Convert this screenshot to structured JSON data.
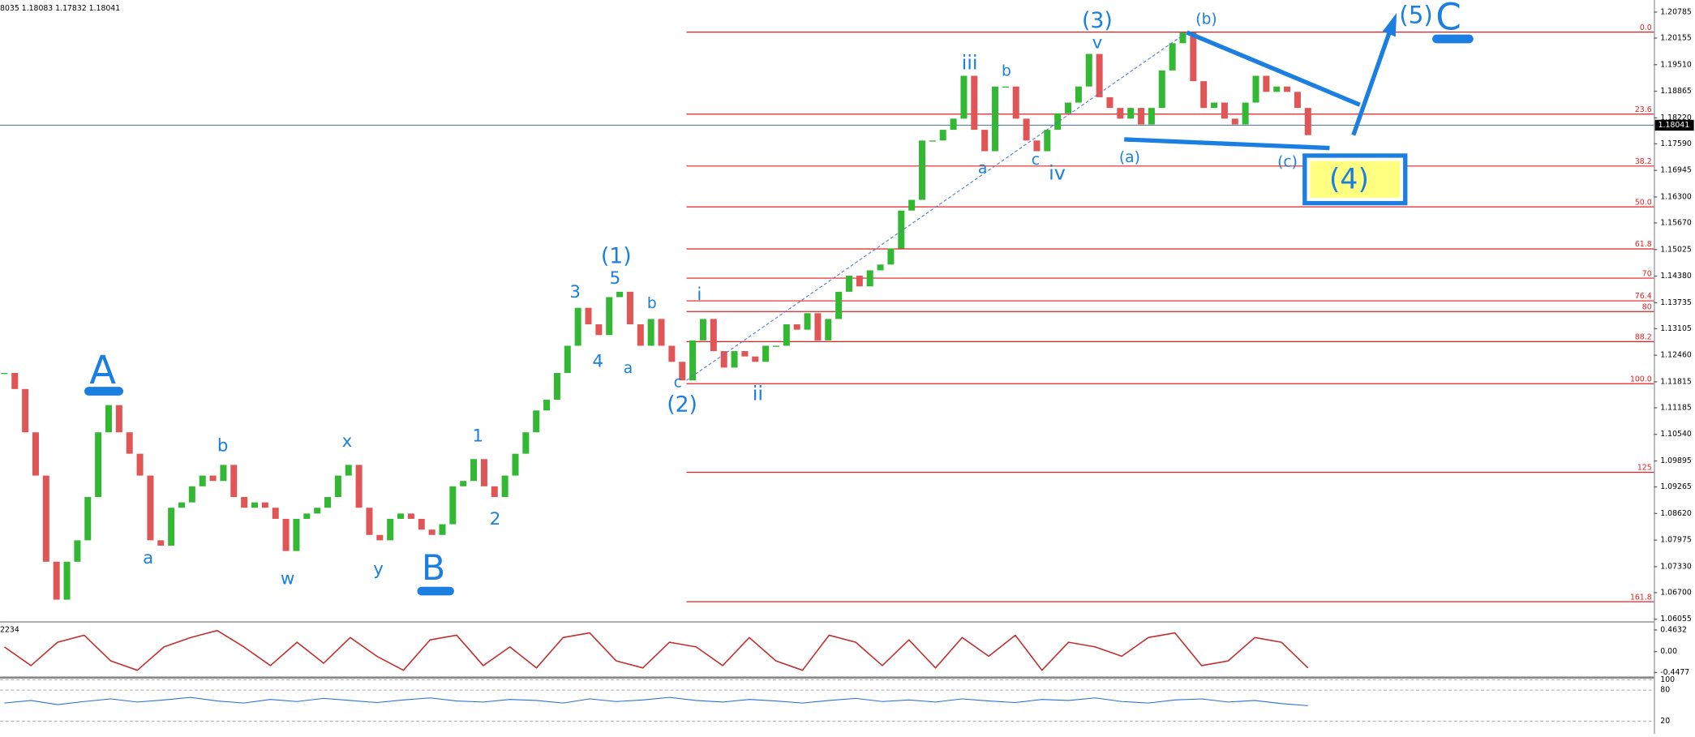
{
  "chart_data": {
    "type": "candlestick",
    "header": "8035 1.18083 1.17832 1.18041",
    "ylim": [
      1.06003,
      1.21079
    ],
    "yticks": [
      {
        "value": 1.20785,
        "label": "1.20785"
      },
      {
        "value": 1.20155,
        "label": "1.20155"
      },
      {
        "value": 1.1951,
        "label": "1.19510"
      },
      {
        "value": 1.18865,
        "label": "1.18865"
      },
      {
        "value": 1.1822,
        "label": "1.18220"
      },
      {
        "value": 1.1759,
        "label": "1.17590"
      },
      {
        "value": 1.16945,
        "label": "1.16945"
      },
      {
        "value": 1.163,
        "label": "1.16300"
      },
      {
        "value": 1.1567,
        "label": "1.15670"
      },
      {
        "value": 1.15025,
        "label": "1.15025"
      },
      {
        "value": 1.1438,
        "label": "1.14380"
      },
      {
        "value": 1.13735,
        "label": "1.13735"
      },
      {
        "value": 1.13105,
        "label": "1.13105"
      },
      {
        "value": 1.1246,
        "label": "1.12460"
      },
      {
        "value": 1.11815,
        "label": "1.11815"
      },
      {
        "value": 1.11185,
        "label": "1.11185"
      },
      {
        "value": 1.1054,
        "label": "1.10540"
      },
      {
        "value": 1.09895,
        "label": "1.09895"
      },
      {
        "value": 1.09265,
        "label": "1.09265"
      },
      {
        "value": 1.0862,
        "label": "1.08620"
      },
      {
        "value": 1.07975,
        "label": "1.07975"
      },
      {
        "value": 1.0733,
        "label": "1.07330"
      },
      {
        "value": 1.067,
        "label": "1.06700"
      },
      {
        "value": 1.06055,
        "label": "1.06055"
      }
    ],
    "current_price": {
      "value": 1.18041,
      "label": "1.18041"
    },
    "up_color": "#33b833",
    "down_color": "#e05555",
    "values": [
      1.1203,
      1.1164,
      1.1059,
      1.0954,
      1.0745,
      1.0653,
      1.0745,
      1.0797,
      1.0902,
      1.1059,
      1.1125,
      1.1059,
      1.1007,
      1.0954,
      1.0797,
      1.0784,
      1.0876,
      1.0889,
      1.0928,
      1.0954,
      1.0941,
      1.098,
      1.0902,
      1.0876,
      1.0889,
      1.0876,
      1.0849,
      1.0771,
      1.0849,
      1.0862,
      1.0876,
      1.0902,
      1.0954,
      1.098,
      1.0876,
      1.081,
      1.0797,
      1.0849,
      1.0862,
      1.0849,
      1.0823,
      1.081,
      1.0836,
      1.0928,
      1.0941,
      1.0994,
      1.0928,
      1.0902,
      1.0954,
      1.1007,
      1.1059,
      1.1112,
      1.1138,
      1.1203,
      1.1269,
      1.1361,
      1.1321,
      1.1295,
      1.1387,
      1.14,
      1.1321,
      1.1269,
      1.1334,
      1.1269,
      1.123,
      1.1185,
      1.1282,
      1.1334,
      1.1256,
      1.1216,
      1.1256,
      1.1243,
      1.123,
      1.1269,
      1.1269,
      1.1321,
      1.1308,
      1.1348,
      1.1282,
      1.1334,
      1.14,
      1.1439,
      1.1413,
      1.1452,
      1.1466,
      1.1505,
      1.1597,
      1.1623,
      1.1767,
      1.1767,
      1.1793,
      1.182,
      1.1924,
      1.1793,
      1.1741,
      1.1898,
      1.1898,
      1.182,
      1.1767,
      1.1741,
      1.1793,
      1.1833,
      1.1859,
      1.1898,
      1.1977,
      1.1872,
      1.1846,
      1.182,
      1.1846,
      1.1806,
      1.1846,
      1.1937,
      1.2003,
      1.2029,
      1.1911,
      1.1846,
      1.1859,
      1.182,
      1.1806,
      1.1859,
      1.1924,
      1.1885,
      1.1898,
      1.1885,
      1.1846,
      1.178
    ],
    "fib_levels": [
      {
        "label": "0.0",
        "price": 1.203
      },
      {
        "label": "23.6",
        "price": 1.1831
      },
      {
        "label": "38.2",
        "price": 1.1705
      },
      {
        "label": "50.0",
        "price": 1.1606
      },
      {
        "label": "61.8",
        "price": 1.1504
      },
      {
        "label": "70",
        "price": 1.1433
      },
      {
        "label": "76.4",
        "price": 1.1378
      },
      {
        "label": "80",
        "price": 1.1352
      },
      {
        "label": "88.2",
        "price": 1.1279
      },
      {
        "label": "100.0",
        "price": 1.1177
      },
      {
        "label": "125",
        "price": 1.0962
      },
      {
        "label": "161.8",
        "price": 1.0648
      }
    ],
    "fib_color": "#e02020",
    "wave_labels": [
      "A",
      "B",
      "C",
      "(1)",
      "(2)",
      "(3)",
      "(4)",
      "(5)",
      "3",
      "5",
      "4",
      "a",
      "b",
      "c",
      "1",
      "2",
      "a",
      "b",
      "w",
      "x",
      "y",
      "i",
      "ii",
      "iii",
      "a",
      "b",
      "c",
      "iv",
      "v",
      "(a)",
      "(b)",
      "(c)"
    ],
    "wave_color": "#1a7fe0",
    "oscillator": {
      "header": "2234",
      "ylim": [
        -0.51,
        0.6
      ],
      "yticks": [
        0.4632,
        {
          "value": 0,
          "label": "0.00"
        },
        -0.4477
      ],
      "color": "#c03030",
      "values": [
        0.1,
        -0.3,
        0.2,
        0.35,
        -0.2,
        -0.4,
        0.1,
        0.3,
        0.45,
        0.1,
        -0.3,
        0.2,
        -0.25,
        0.3,
        -0.1,
        -0.4,
        0.25,
        0.35,
        -0.3,
        0.1,
        -0.35,
        0.3,
        0.4,
        -0.2,
        -0.35,
        0.2,
        0.1,
        -0.3,
        0.3,
        -0.2,
        -0.4,
        0.35,
        0.2,
        -0.3,
        0.25,
        -0.35,
        0.3,
        -0.1,
        0.35,
        -0.4,
        0.2,
        0.1,
        -0.1,
        0.3,
        0.4,
        -0.3,
        -0.2,
        0.3,
        0.2,
        -0.35
      ]
    },
    "rsi": {
      "ylim": [
        0,
        100
      ],
      "yticks": [
        100,
        80,
        20
      ],
      "color": "#2a6fd6",
      "values": [
        55,
        60,
        52,
        58,
        63,
        57,
        61,
        66,
        59,
        55,
        62,
        58,
        64,
        60,
        56,
        61,
        65,
        59,
        57,
        62,
        60,
        55,
        63,
        58,
        61,
        66,
        60,
        57,
        62,
        59,
        55,
        60,
        64,
        58,
        61,
        57,
        63,
        59,
        56,
        62,
        60,
        65,
        58,
        55,
        61,
        63,
        57,
        60,
        54,
        50
      ]
    }
  }
}
